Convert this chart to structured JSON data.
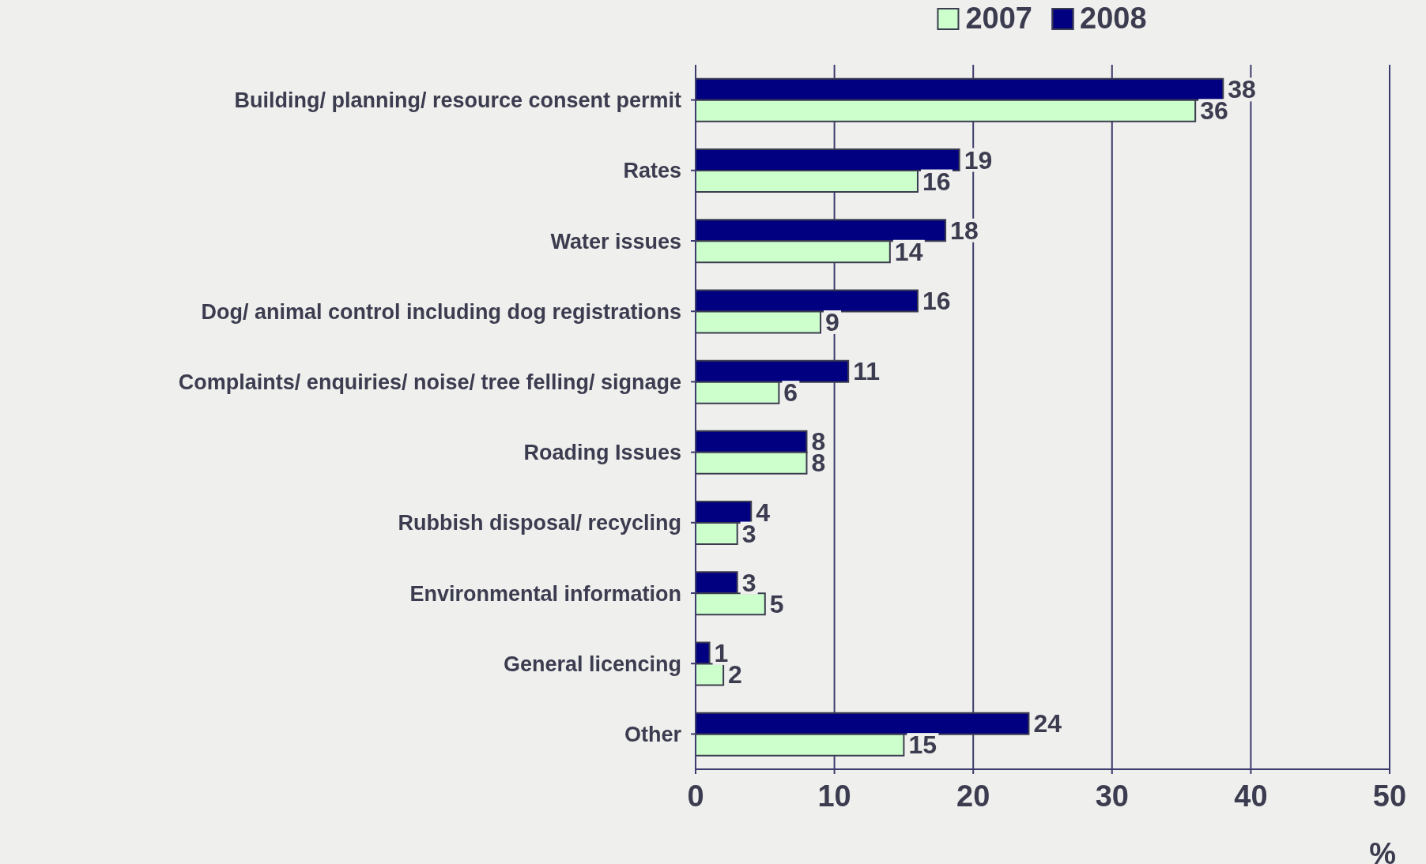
{
  "chart_data": {
    "type": "bar",
    "orientation": "horizontal",
    "xlabel": "%",
    "categories": [
      "Building/ planning/ resource consent permit",
      "Rates",
      "Water issues",
      "Dog/ animal control including dog registrations",
      "Complaints/ enquiries/ noise/ tree felling/ signage",
      "Roading Issues",
      "Rubbish disposal/ recycling",
      "Environmental information",
      "General licencing",
      "Other"
    ],
    "series": [
      {
        "name": "2007",
        "color": "#ccffcc",
        "values": [
          36,
          16,
          14,
          9,
          6,
          8,
          3,
          5,
          2,
          15
        ]
      },
      {
        "name": "2008",
        "color": "#000080",
        "values": [
          38,
          19,
          18,
          16,
          11,
          8,
          4,
          3,
          1,
          24
        ]
      }
    ],
    "xlim": [
      0,
      50
    ],
    "xticks": [
      0,
      10,
      20,
      30,
      40,
      50
    ],
    "grid": "x",
    "legend": "top",
    "data_labels": true
  }
}
